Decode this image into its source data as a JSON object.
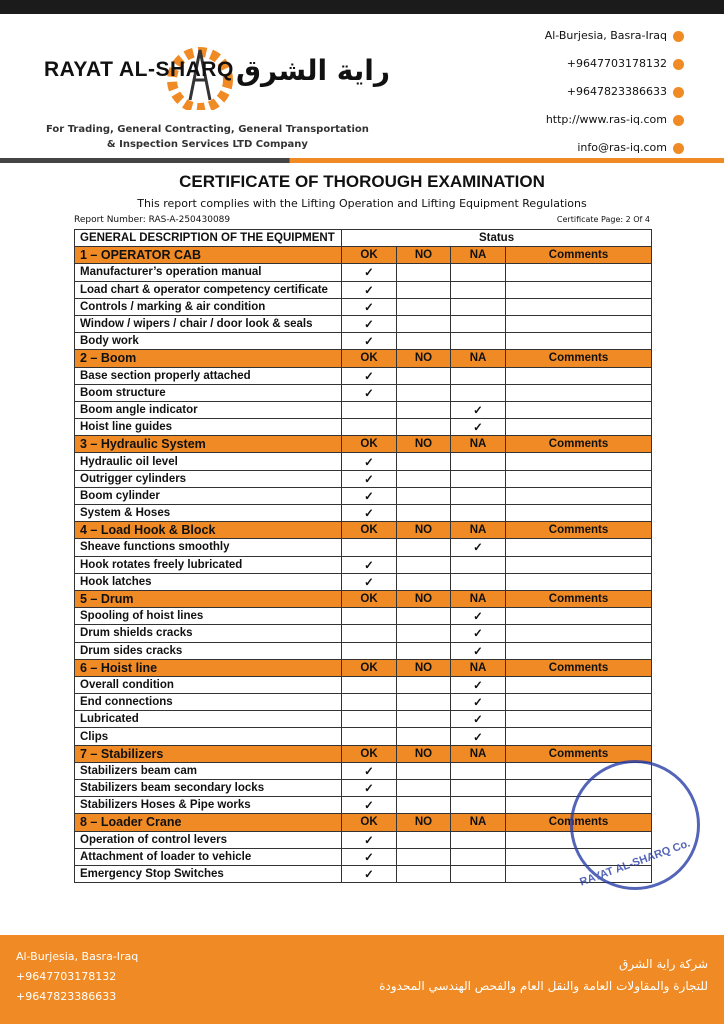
{
  "header": {
    "brand": "RAYAT AL-SHARQ",
    "brand_arabic": "راية الشرق",
    "tagline": [
      "For Trading, General Contracting, General Transportation",
      "& Inspection Services LTD Company"
    ],
    "contacts": [
      "Al-Burjesia, Basra-Iraq",
      "+9647703178132",
      "+9647823386633",
      "http://www.ras-iq.com",
      "info@ras-iq.com"
    ]
  },
  "title": "CERTIFICATE OF THOROUGH EXAMINATION",
  "subtitle": "This report complies with the Lifting Operation and Lifting Equipment Regulations",
  "report_number": "Report Number: RAS-A-250430089",
  "certificate_page": "Certificate Page: 2 Of 4",
  "table": {
    "header": [
      "GENERAL DESCRIPTION OF THE EQUIPMENT",
      "Status"
    ],
    "sections": [
      {
        "title": "1 – OPERATOR CAB",
        "columns": [
          "OK",
          "NO",
          "NA",
          "Comments"
        ],
        "items": [
          {
            "label": "Manufacturer’s operation manual",
            "ok": "✓"
          },
          {
            "label": "Load chart & operator competency certificate",
            "ok": "✓"
          },
          {
            "label": "Controls / marking & air condition",
            "ok": "✓"
          },
          {
            "label": "Window / wipers / chair / door look & seals",
            "ok": "✓"
          },
          {
            "label": "Body work",
            "ok": "✓"
          }
        ]
      },
      {
        "title": "2 – Boom",
        "columns": [
          "OK",
          "NO",
          "NA",
          "Comments"
        ],
        "items": [
          {
            "label": "Base section properly attached",
            "ok": "✓"
          },
          {
            "label": "Boom structure",
            "ok": "✓"
          },
          {
            "label": "Boom angle indicator",
            "na": "✓"
          },
          {
            "label": "Hoist line guides",
            "na": "✓"
          }
        ]
      },
      {
        "title": "3 – Hydraulic System",
        "columns": [
          "OK",
          "NO",
          "NA",
          "Comments"
        ],
        "items": [
          {
            "label": "Hydraulic oil level",
            "ok": "✓"
          },
          {
            "label": "Outrigger cylinders",
            "ok": "✓"
          },
          {
            "label": "Boom cylinder",
            "ok": "✓"
          },
          {
            "label": "System & Hoses",
            "ok": "✓"
          }
        ]
      },
      {
        "title": "4 – Load Hook & Block",
        "columns": [
          "OK",
          "NO",
          "NA",
          "Comments"
        ],
        "items": [
          {
            "label": "Sheave functions smoothly",
            "na": "✓"
          },
          {
            "label": "Hook rotates freely lubricated",
            "ok": "✓"
          },
          {
            "label": "Hook latches",
            "ok": "✓"
          }
        ]
      },
      {
        "title": "5 – Drum",
        "columns": [
          "OK",
          "NO",
          "NA",
          "Comments"
        ],
        "items": [
          {
            "label": "Spooling of hoist lines",
            "na": "✓"
          },
          {
            "label": "Drum shields cracks",
            "na": "✓"
          },
          {
            "label": "Drum sides cracks",
            "na": "✓"
          }
        ]
      },
      {
        "title": "6 – Hoist line",
        "columns": [
          "OK",
          "NO",
          "NA",
          "Comments"
        ],
        "items": [
          {
            "label": "Overall condition",
            "na": "✓"
          },
          {
            "label": "End connections",
            "na": "✓"
          },
          {
            "label": "Lubricated",
            "na": "✓"
          },
          {
            "label": "Clips",
            "na": "✓"
          }
        ]
      },
      {
        "title": "7 – Stabilizers",
        "columns": [
          "OK",
          "NO",
          "NA",
          "Comments"
        ],
        "items": [
          {
            "label": "Stabilizers beam cam",
            "ok": "✓"
          },
          {
            "label": "Stabilizers beam secondary locks",
            "ok": "✓"
          },
          {
            "label": "Stabilizers Hoses & Pipe works",
            "ok": "✓"
          }
        ]
      },
      {
        "title": "8 – Loader Crane",
        "columns": [
          "OK",
          "NO",
          "NA",
          "Comments"
        ],
        "items": [
          {
            "label": "Operation of control levers",
            "ok": "✓"
          },
          {
            "label": "Attachment of loader to vehicle",
            "ok": "✓"
          },
          {
            "label": "Emergency Stop Switches",
            "ok": "✓"
          }
        ]
      }
    ]
  },
  "stamp": "RAYAT AL-SHARQ Co.",
  "footer": {
    "left": [
      "Al-Burjesia, Basra-Iraq",
      "+9647703178132",
      "+9647823386633"
    ],
    "right": [
      "شركة راية الشرق",
      "للتجارة والمقاولات العامة والنقل العام والفحص الهندسي المحدودة"
    ]
  }
}
